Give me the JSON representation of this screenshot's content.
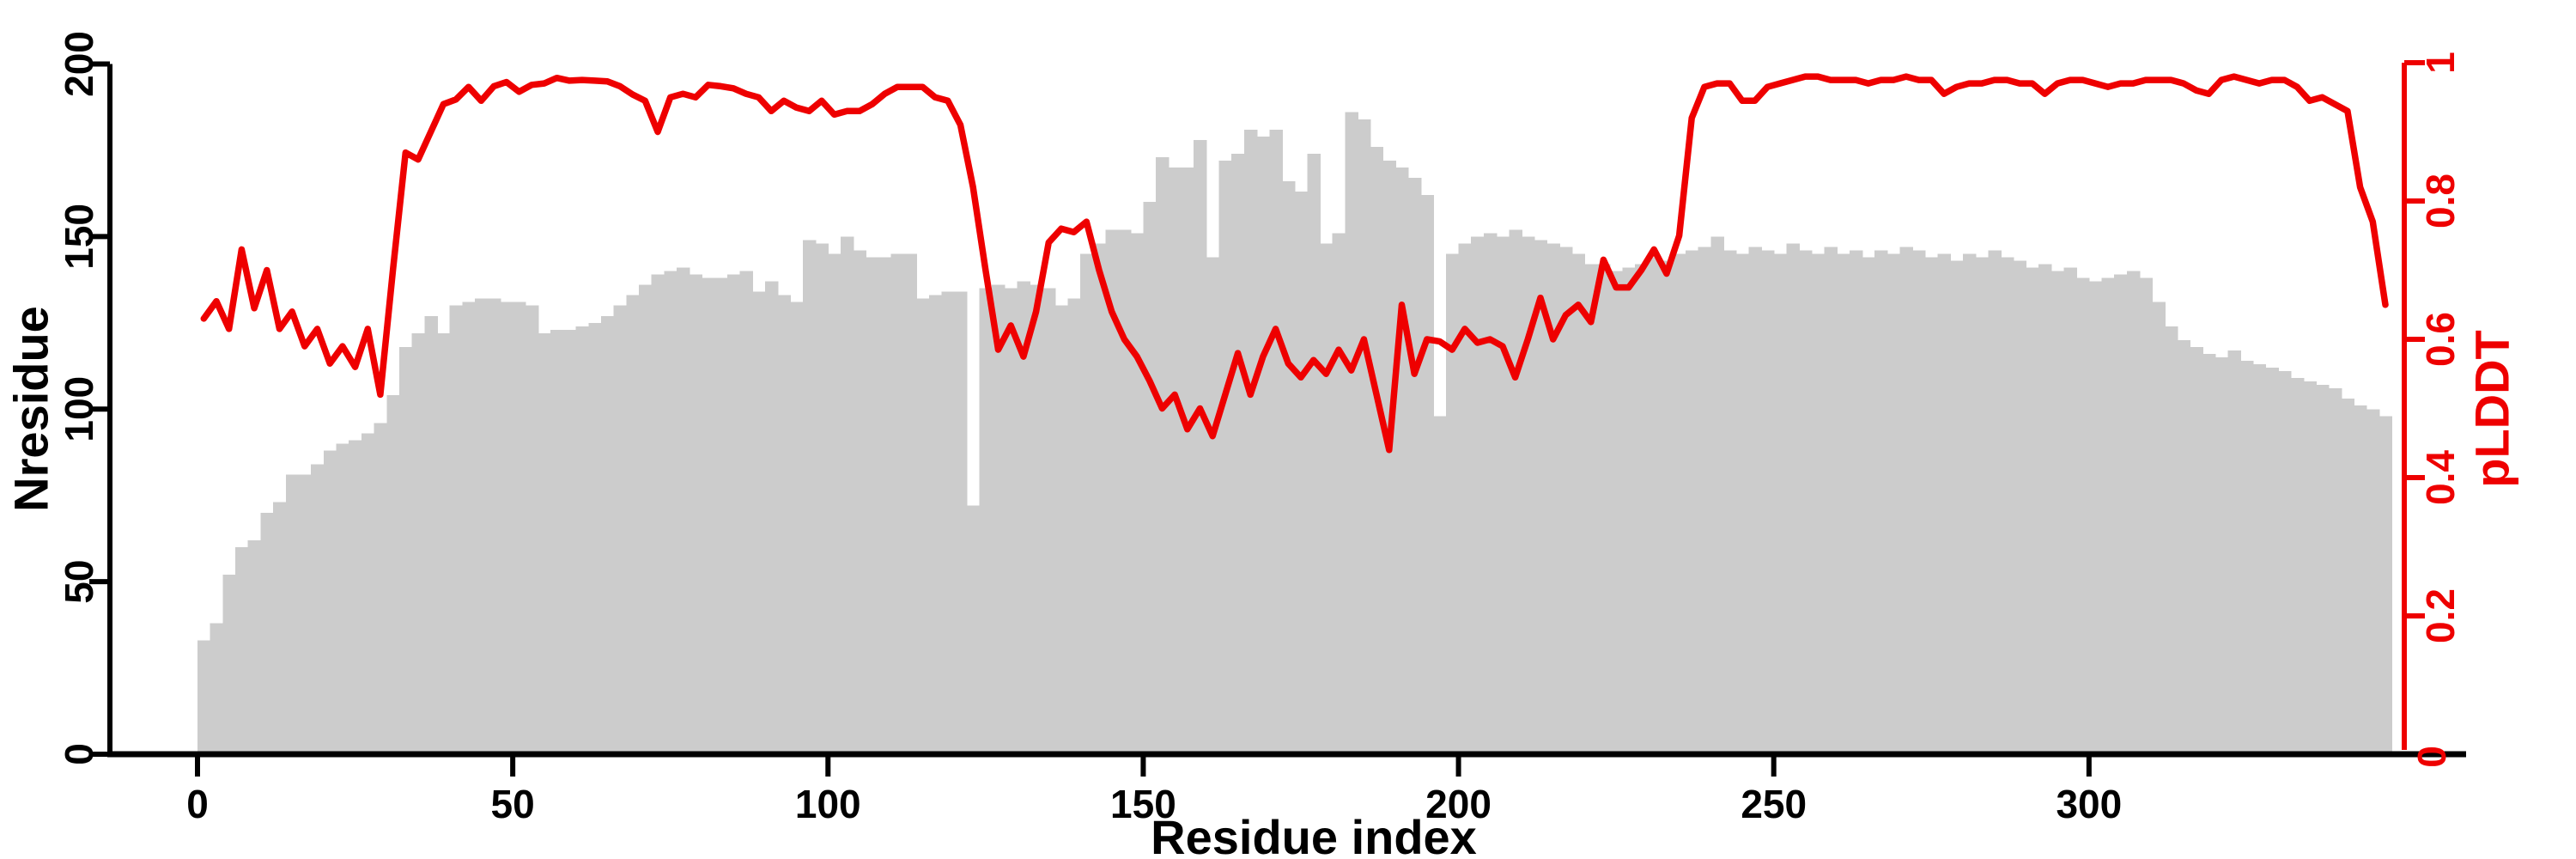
{
  "chart_data": {
    "type": "bar+line",
    "title": "",
    "xlabel": "Residue index",
    "x_range": [
      0,
      352
    ],
    "x_ticks": [
      0,
      50,
      100,
      150,
      200,
      250,
      300
    ],
    "grid": "off",
    "legend": "none",
    "left_axis": {
      "label": "Nresidue",
      "range": [
        0,
        200
      ],
      "ticks": [
        "0",
        "50",
        "100",
        "150",
        "200"
      ],
      "tick_values": [
        0,
        50,
        100,
        150,
        200
      ],
      "color": "#000000"
    },
    "right_axis": {
      "label": "pLDDT",
      "range": [
        0,
        1
      ],
      "ticks": [
        "0",
        "0.2",
        "0.4",
        "0.6",
        "0.8",
        "1"
      ],
      "tick_values": [
        0,
        0.2,
        0.4,
        0.6,
        0.8,
        1
      ],
      "color": "#ee0000"
    },
    "bar_color": "#cccccc",
    "line_color": "#ee0000",
    "x": [
      0,
      2,
      4,
      6,
      8,
      10,
      12,
      14,
      16,
      18,
      20,
      22,
      24,
      26,
      28,
      30,
      32,
      34,
      36,
      38,
      40,
      42,
      44,
      46,
      48,
      50,
      52,
      54,
      56,
      58,
      60,
      62,
      64,
      66,
      68,
      70,
      72,
      74,
      76,
      78,
      80,
      82,
      84,
      86,
      88,
      90,
      92,
      94,
      96,
      98,
      100,
      102,
      104,
      106,
      108,
      110,
      112,
      114,
      116,
      118,
      120,
      122,
      124,
      126,
      128,
      130,
      132,
      134,
      136,
      138,
      140,
      142,
      144,
      146,
      148,
      150,
      152,
      154,
      156,
      158,
      160,
      162,
      164,
      166,
      168,
      170,
      172,
      174,
      176,
      178,
      180,
      182,
      184,
      186,
      188,
      190,
      192,
      194,
      196,
      198,
      200,
      202,
      204,
      206,
      208,
      210,
      212,
      214,
      216,
      218,
      220,
      222,
      224,
      226,
      228,
      230,
      232,
      234,
      236,
      238,
      240,
      242,
      244,
      246,
      248,
      250,
      252,
      254,
      256,
      258,
      260,
      262,
      264,
      266,
      268,
      270,
      272,
      274,
      276,
      278,
      280,
      282,
      284,
      286,
      288,
      290,
      292,
      294,
      296,
      298,
      300,
      302,
      304,
      306,
      308,
      310,
      312,
      314,
      316,
      318,
      320,
      322,
      324,
      326,
      328,
      330,
      332,
      334,
      336,
      338,
      340,
      342,
      344,
      346
    ],
    "series": [
      {
        "name": "Nresidue",
        "type": "bar",
        "axis": "left",
        "values": [
          33,
          38,
          52,
          60,
          62,
          70,
          73,
          81,
          81,
          84,
          88,
          90,
          91,
          93,
          96,
          104,
          118,
          122,
          127,
          122,
          130,
          131,
          132,
          132,
          131,
          131,
          130,
          122,
          123,
          123,
          124,
          125,
          127,
          130,
          133,
          136,
          139,
          140,
          141,
          139,
          138,
          138,
          139,
          140,
          134,
          137,
          133,
          131,
          149,
          148,
          145,
          150,
          146,
          144,
          144,
          145,
          145,
          132,
          133,
          134,
          134,
          72,
          135,
          136,
          135,
          137,
          136,
          135,
          130,
          132,
          145,
          148,
          152,
          152,
          151,
          160,
          173,
          170,
          170,
          178,
          144,
          172,
          174,
          181,
          179,
          181,
          166,
          163,
          174,
          148,
          151,
          186,
          184,
          176,
          172,
          170,
          167,
          162,
          98,
          145,
          148,
          150,
          151,
          150,
          152,
          150,
          149,
          148,
          147,
          145,
          142,
          142,
          140,
          141,
          142,
          144,
          143,
          145,
          146,
          147,
          150,
          146,
          145,
          147,
          146,
          145,
          148,
          146,
          145,
          147,
          145,
          146,
          144,
          146,
          145,
          147,
          146,
          144,
          145,
          143,
          145,
          144,
          146,
          144,
          143,
          141,
          142,
          140,
          141,
          138,
          137,
          138,
          139,
          140,
          138,
          131,
          124,
          120,
          118,
          116,
          115,
          117,
          114,
          113,
          112,
          111,
          109,
          108,
          107,
          106,
          103,
          101,
          100,
          98
        ]
      },
      {
        "name": "pLDDT",
        "type": "line",
        "axis": "right",
        "values": [
          0.63,
          0.655,
          0.615,
          0.73,
          0.645,
          0.7,
          0.615,
          0.64,
          0.59,
          0.615,
          0.565,
          0.59,
          0.56,
          0.615,
          0.52,
          0.7,
          0.87,
          0.86,
          0.9,
          0.94,
          0.947,
          0.965,
          0.945,
          0.966,
          0.972,
          0.958,
          0.968,
          0.97,
          0.978,
          0.974,
          0.975,
          0.974,
          0.973,
          0.966,
          0.954,
          0.945,
          0.9,
          0.95,
          0.955,
          0.95,
          0.968,
          0.966,
          0.963,
          0.955,
          0.95,
          0.93,
          0.945,
          0.935,
          0.93,
          0.945,
          0.925,
          0.93,
          0.93,
          0.94,
          0.955,
          0.965,
          0.965,
          0.965,
          0.95,
          0.945,
          0.91,
          0.82,
          0.7,
          0.585,
          0.62,
          0.575,
          0.64,
          0.74,
          0.76,
          0.755,
          0.77,
          0.7,
          0.64,
          0.6,
          0.575,
          0.54,
          0.5,
          0.52,
          0.47,
          0.5,
          0.46,
          0.52,
          0.58,
          0.52,
          0.575,
          0.615,
          0.565,
          0.545,
          0.57,
          0.55,
          0.585,
          0.555,
          0.6,
          0.52,
          0.44,
          0.65,
          0.55,
          0.6,
          0.597,
          0.585,
          0.615,
          0.595,
          0.6,
          0.59,
          0.545,
          0.6,
          0.66,
          0.6,
          0.635,
          0.65,
          0.625,
          0.715,
          0.675,
          0.675,
          0.7,
          0.73,
          0.695,
          0.75,
          0.92,
          0.965,
          0.97,
          0.97,
          0.945,
          0.945,
          0.965,
          0.97,
          0.975,
          0.98,
          0.98,
          0.975,
          0.975,
          0.975,
          0.97,
          0.975,
          0.975,
          0.98,
          0.975,
          0.975,
          0.955,
          0.965,
          0.97,
          0.97,
          0.975,
          0.975,
          0.97,
          0.97,
          0.955,
          0.97,
          0.975,
          0.975,
          0.97,
          0.965,
          0.97,
          0.97,
          0.975,
          0.975,
          0.975,
          0.97,
          0.96,
          0.955,
          0.975,
          0.98,
          0.975,
          0.97,
          0.975,
          0.975,
          0.965,
          0.945,
          0.95,
          0.94,
          0.93,
          0.82,
          0.77,
          0.65
        ]
      }
    ]
  }
}
